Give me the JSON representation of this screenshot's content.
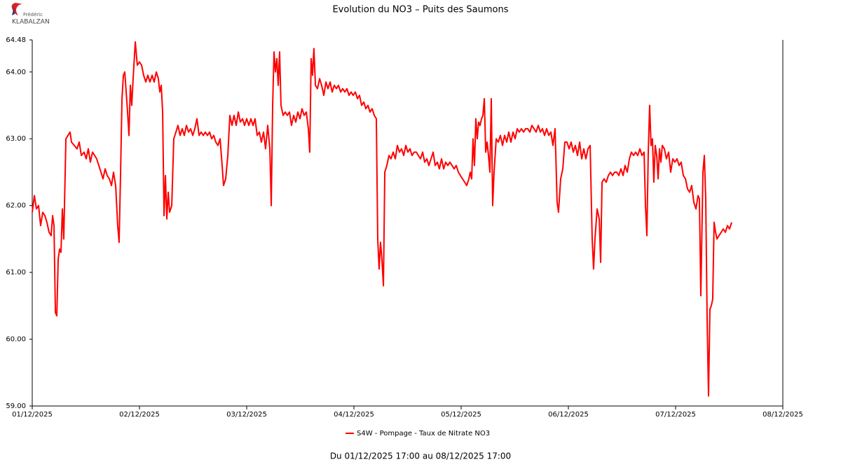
{
  "logo": {
    "line1": "Frédéric",
    "line2": "KLABALZAN"
  },
  "chart_data": {
    "type": "line",
    "title": "Evolution du NO3 – Puits des Saumons",
    "footer": "Du 01/12/2025 17:00 au 08/12/2025 17:00",
    "xlim": [
      0,
      7
    ],
    "xticks": [
      {
        "value": 0,
        "label": "01/12/2025"
      },
      {
        "value": 1,
        "label": "02/12/2025"
      },
      {
        "value": 2,
        "label": "03/12/2025"
      },
      {
        "value": 3,
        "label": "04/12/2025"
      },
      {
        "value": 4,
        "label": "05/12/2025"
      },
      {
        "value": 5,
        "label": "06/12/2025"
      },
      {
        "value": 6,
        "label": "07/12/2025"
      },
      {
        "value": 7,
        "label": "08/12/2025"
      }
    ],
    "ylim": [
      59,
      64.48
    ],
    "yticks": [
      {
        "value": 59,
        "label": "59.00"
      },
      {
        "value": 60,
        "label": "60.00"
      },
      {
        "value": 61,
        "label": "61.00"
      },
      {
        "value": 62,
        "label": "62.00"
      },
      {
        "value": 63,
        "label": "63.00"
      },
      {
        "value": 64,
        "label": "64.00"
      },
      {
        "value": 64.48,
        "label": "64.48"
      }
    ],
    "grid": false,
    "legend": "bottom",
    "x": [
      0,
      0.02,
      0.039,
      0.059,
      0.078,
      0.098,
      0.118,
      0.137,
      0.157,
      0.176,
      0.19,
      0.203,
      0.216,
      0.229,
      0.242,
      0.255,
      0.268,
      0.281,
      0.294,
      0.314,
      0.333,
      0.353,
      0.366,
      0.392,
      0.418,
      0.438,
      0.458,
      0.484,
      0.503,
      0.523,
      0.542,
      0.562,
      0.582,
      0.601,
      0.621,
      0.641,
      0.66,
      0.68,
      0.699,
      0.719,
      0.739,
      0.758,
      0.778,
      0.797,
      0.81,
      0.824,
      0.837,
      0.85,
      0.863,
      0.876,
      0.889,
      0.902,
      0.915,
      0.928,
      0.941,
      0.961,
      0.98,
      1.0,
      1.02,
      1.039,
      1.059,
      1.078,
      1.098,
      1.118,
      1.137,
      1.157,
      1.176,
      1.19,
      1.203,
      1.216,
      1.229,
      1.242,
      1.255,
      1.268,
      1.281,
      1.301,
      1.32,
      1.34,
      1.359,
      1.379,
      1.399,
      1.418,
      1.438,
      1.458,
      1.477,
      1.497,
      1.516,
      1.536,
      1.556,
      1.575,
      1.595,
      1.614,
      1.634,
      1.654,
      1.673,
      1.693,
      1.712,
      1.732,
      1.752,
      1.771,
      1.784,
      1.804,
      1.824,
      1.843,
      1.863,
      1.882,
      1.902,
      1.922,
      1.941,
      1.961,
      1.98,
      2.0,
      2.02,
      2.039,
      2.059,
      2.078,
      2.098,
      2.118,
      2.137,
      2.157,
      2.176,
      2.196,
      2.216,
      2.229,
      2.242,
      2.255,
      2.268,
      2.281,
      2.294,
      2.307,
      2.32,
      2.34,
      2.359,
      2.379,
      2.399,
      2.418,
      2.438,
      2.458,
      2.477,
      2.497,
      2.516,
      2.536,
      2.556,
      2.575,
      2.588,
      2.601,
      2.614,
      2.627,
      2.641,
      2.66,
      2.68,
      2.699,
      2.719,
      2.739,
      2.758,
      2.778,
      2.797,
      2.817,
      2.837,
      2.856,
      2.876,
      2.895,
      2.915,
      2.935,
      2.954,
      2.974,
      2.993,
      3.013,
      3.033,
      3.052,
      3.072,
      3.092,
      3.111,
      3.131,
      3.15,
      3.17,
      3.19,
      3.209,
      3.222,
      3.235,
      3.248,
      3.261,
      3.275,
      3.288,
      3.307,
      3.327,
      3.346,
      3.366,
      3.386,
      3.405,
      3.425,
      3.444,
      3.464,
      3.484,
      3.503,
      3.523,
      3.542,
      3.562,
      3.582,
      3.601,
      3.621,
      3.641,
      3.66,
      3.68,
      3.699,
      3.719,
      3.739,
      3.758,
      3.778,
      3.797,
      3.817,
      3.837,
      3.856,
      3.876,
      3.895,
      3.915,
      3.935,
      3.954,
      3.974,
      3.993,
      4.013,
      4.033,
      4.052,
      4.072,
      4.085,
      4.098,
      4.111,
      4.124,
      4.137,
      4.15,
      4.163,
      4.176,
      4.19,
      4.203,
      4.216,
      4.229,
      4.242,
      4.255,
      4.268,
      4.281,
      4.294,
      4.307,
      4.327,
      4.346,
      4.366,
      4.386,
      4.405,
      4.425,
      4.444,
      4.464,
      4.484,
      4.503,
      4.523,
      4.542,
      4.562,
      4.582,
      4.601,
      4.621,
      4.641,
      4.66,
      4.68,
      4.699,
      4.719,
      4.739,
      4.758,
      4.778,
      4.797,
      4.817,
      4.837,
      4.856,
      4.876,
      4.895,
      4.908,
      4.928,
      4.948,
      4.967,
      4.987,
      5.007,
      5.026,
      5.046,
      5.065,
      5.085,
      5.105,
      5.124,
      5.144,
      5.163,
      5.183,
      5.203,
      5.222,
      5.235,
      5.248,
      5.268,
      5.288,
      5.301,
      5.314,
      5.333,
      5.353,
      5.373,
      5.392,
      5.412,
      5.431,
      5.451,
      5.471,
      5.49,
      5.51,
      5.529,
      5.549,
      5.569,
      5.588,
      5.608,
      5.627,
      5.647,
      5.667,
      5.686,
      5.706,
      5.719,
      5.732,
      5.745,
      5.758,
      5.771,
      5.784,
      5.797,
      5.81,
      5.824,
      5.837,
      5.85,
      5.863,
      5.876,
      5.895,
      5.915,
      5.935,
      5.954,
      5.974,
      5.993,
      6.013,
      6.033,
      6.052,
      6.072,
      6.092,
      6.111,
      6.131,
      6.15,
      6.17,
      6.19,
      6.209,
      6.222,
      6.235,
      6.255,
      6.268,
      6.281,
      6.294,
      6.307,
      6.32,
      6.333,
      6.346,
      6.359,
      6.373,
      6.386,
      6.405,
      6.425,
      6.444,
      6.464,
      6.484,
      6.503,
      6.523
    ],
    "series": [
      {
        "name": "S4W - Pompage - Taux de Nitrate NO3",
        "color": "#ff0000",
        "values": [
          61.9,
          62.15,
          61.95,
          62.0,
          61.7,
          61.9,
          61.85,
          61.75,
          61.6,
          61.55,
          61.85,
          61.7,
          60.4,
          60.35,
          61.2,
          61.35,
          61.3,
          61.95,
          61.5,
          63.0,
          63.05,
          63.1,
          62.95,
          62.9,
          62.85,
          62.95,
          62.75,
          62.8,
          62.7,
          62.85,
          62.65,
          62.8,
          62.75,
          62.7,
          62.6,
          62.5,
          62.4,
          62.55,
          62.45,
          62.4,
          62.3,
          62.5,
          62.3,
          61.7,
          61.45,
          62.5,
          63.6,
          63.95,
          64.0,
          63.7,
          63.4,
          63.05,
          63.8,
          63.5,
          63.9,
          64.45,
          64.1,
          64.15,
          64.1,
          63.95,
          63.85,
          63.95,
          63.85,
          63.95,
          63.85,
          64.0,
          63.9,
          63.7,
          63.8,
          63.4,
          61.85,
          62.45,
          61.8,
          62.2,
          61.9,
          62.0,
          63.0,
          63.1,
          63.2,
          63.05,
          63.15,
          63.05,
          63.2,
          63.1,
          63.15,
          63.05,
          63.15,
          63.3,
          63.05,
          63.1,
          63.05,
          63.1,
          63.05,
          63.1,
          63.0,
          63.05,
          62.95,
          62.9,
          63.0,
          62.6,
          62.3,
          62.4,
          62.75,
          63.35,
          63.2,
          63.35,
          63.2,
          63.4,
          63.25,
          63.3,
          63.2,
          63.3,
          63.2,
          63.3,
          63.2,
          63.3,
          63.05,
          63.1,
          62.95,
          63.1,
          62.85,
          63.2,
          62.85,
          62.0,
          63.5,
          64.3,
          64.0,
          64.2,
          63.8,
          64.3,
          63.5,
          63.35,
          63.4,
          63.35,
          63.4,
          63.2,
          63.35,
          63.25,
          63.4,
          63.3,
          63.45,
          63.35,
          63.4,
          63.15,
          62.8,
          64.2,
          63.95,
          64.35,
          63.8,
          63.75,
          63.9,
          63.8,
          63.65,
          63.85,
          63.75,
          63.85,
          63.7,
          63.8,
          63.75,
          63.8,
          63.7,
          63.75,
          63.7,
          63.75,
          63.65,
          63.7,
          63.65,
          63.7,
          63.6,
          63.65,
          63.5,
          63.55,
          63.45,
          63.5,
          63.4,
          63.45,
          63.35,
          63.3,
          61.5,
          61.05,
          61.45,
          61.2,
          60.8,
          62.5,
          62.6,
          62.75,
          62.7,
          62.8,
          62.7,
          62.9,
          62.8,
          62.85,
          62.75,
          62.9,
          62.8,
          62.85,
          62.75,
          62.8,
          62.8,
          62.75,
          62.7,
          62.8,
          62.65,
          62.7,
          62.6,
          62.7,
          62.8,
          62.6,
          62.65,
          62.55,
          62.7,
          62.55,
          62.65,
          62.6,
          62.65,
          62.6,
          62.55,
          62.6,
          62.5,
          62.45,
          62.4,
          62.35,
          62.3,
          62.4,
          62.5,
          62.4,
          63.0,
          62.6,
          63.3,
          63.0,
          63.25,
          63.2,
          63.3,
          63.35,
          63.6,
          62.8,
          62.95,
          62.75,
          62.5,
          63.6,
          62.0,
          62.5,
          63.0,
          62.95,
          63.05,
          62.9,
          63.05,
          62.95,
          63.1,
          62.95,
          63.1,
          63.0,
          63.15,
          63.1,
          63.15,
          63.1,
          63.15,
          63.15,
          63.1,
          63.2,
          63.15,
          63.1,
          63.2,
          63.1,
          63.15,
          63.05,
          63.15,
          63.05,
          63.1,
          62.9,
          63.15,
          62.05,
          61.9,
          62.4,
          62.55,
          62.95,
          62.95,
          62.85,
          62.95,
          62.8,
          62.9,
          62.75,
          62.95,
          62.7,
          62.85,
          62.7,
          62.85,
          62.9,
          61.5,
          61.05,
          61.5,
          61.95,
          61.8,
          61.15,
          62.35,
          62.4,
          62.35,
          62.45,
          62.5,
          62.45,
          62.5,
          62.5,
          62.45,
          62.55,
          62.45,
          62.6,
          62.5,
          62.7,
          62.8,
          62.75,
          62.8,
          62.75,
          62.85,
          62.75,
          62.8,
          62.0,
          61.55,
          62.8,
          63.5,
          62.9,
          63.0,
          62.35,
          62.9,
          62.75,
          62.4,
          62.85,
          62.65,
          62.9,
          62.85,
          62.7,
          62.8,
          62.5,
          62.7,
          62.65,
          62.7,
          62.6,
          62.65,
          62.45,
          62.4,
          62.25,
          62.2,
          62.3,
          62.05,
          61.95,
          62.15,
          62.1,
          60.65,
          62.5,
          62.75,
          62.1,
          60.3,
          59.15,
          60.45,
          60.5,
          60.6,
          61.75,
          61.6,
          61.5,
          61.55,
          61.6,
          61.65,
          61.6,
          61.7,
          61.65,
          61.75
        ]
      }
    ]
  }
}
